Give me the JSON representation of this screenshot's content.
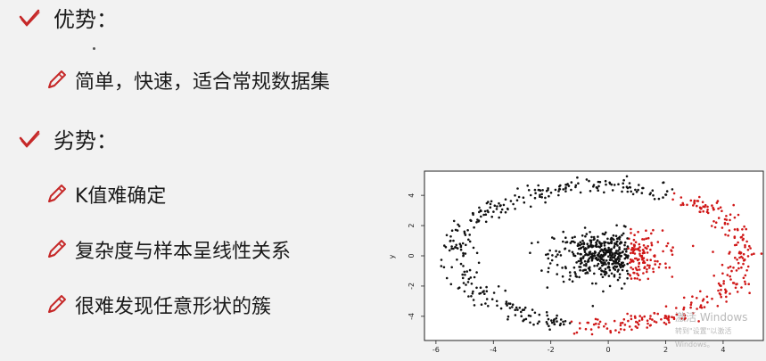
{
  "advantages": {
    "heading": "优势：",
    "items": [
      "简单，快速，适合常规数据集"
    ]
  },
  "disadvantages": {
    "heading": "劣势：",
    "items": [
      "K值难确定",
      "复杂度与样本呈线性关系",
      "很难发现任意形状的簇"
    ]
  },
  "icons": {
    "heading": "check-icon",
    "bullet": "pencil-icon"
  },
  "colors": {
    "accent": "#c62828",
    "text": "#1a1a1a",
    "cluster_1": "#111111",
    "cluster_2": "#d01818"
  },
  "watermark": {
    "line1": "激活 Windows",
    "line2": "转到\"设置\"以激活 Windows。"
  },
  "chart_data": {
    "type": "scatter",
    "title": "",
    "xlabel": "",
    "ylabel": "y",
    "xlim": [
      -6.4,
      5.4
    ],
    "ylim": [
      -5.6,
      5.6
    ],
    "xticks": [
      -6,
      -4,
      -2,
      0,
      2,
      4
    ],
    "yticks": [
      -4,
      -2,
      0,
      2,
      4
    ],
    "series": [
      {
        "color": "#111111",
        "description": "outer ring left part plus inner blob left part",
        "ring_angle_range_deg": [
          62,
          258
        ],
        "blob_x_max": 0.7
      },
      {
        "color": "#d01818",
        "description": "outer ring right part plus inner blob right part",
        "ring_angle_range_deg": [
          -102,
          62
        ],
        "blob_x_min": 0.7
      }
    ],
    "ring": {
      "cx": -0.3,
      "cy": 0.0,
      "rx": 5.0,
      "ry": 4.6
    },
    "blob": {
      "cx": 0.0,
      "cy": 0.0,
      "sx": 1.1,
      "sy": 1.1
    }
  }
}
